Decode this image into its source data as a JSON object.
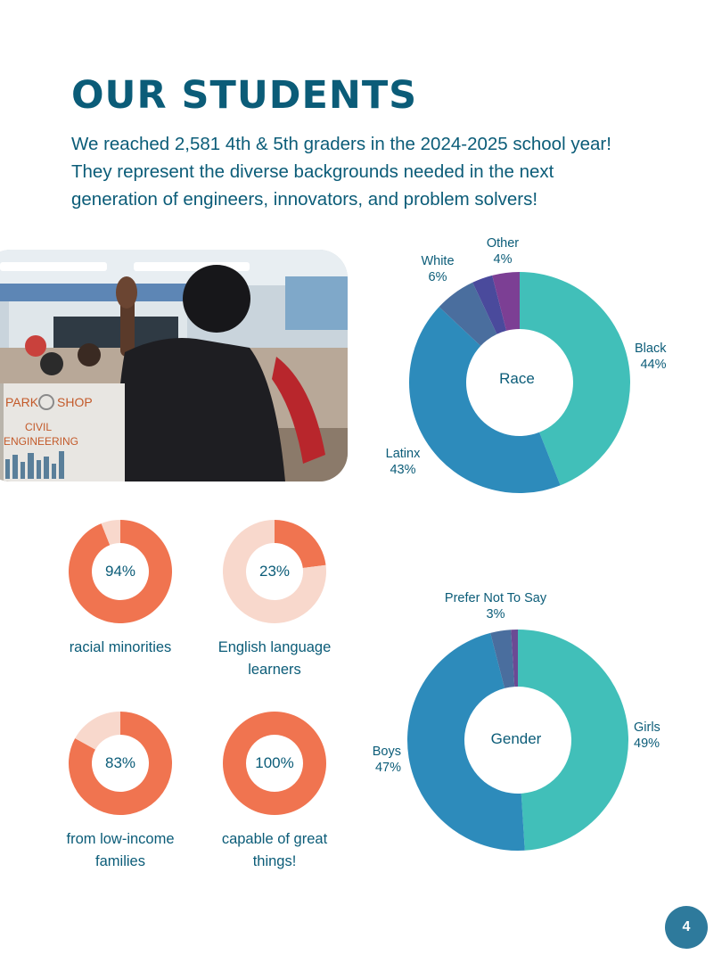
{
  "page": {
    "title": "OUR STUDENTS",
    "intro": "We reached 2,581 4th & 5th graders in the 2024-2025 school year! They represent the diverse backgrounds needed in the next generation of engineers, innovators, and problem solvers!",
    "page_number": "4"
  },
  "photo": {
    "sign_line1": "PARK",
    "sign_line2": "SHOP",
    "sign_line3": "CIVIL",
    "sign_line4": "ENGINEERING"
  },
  "chart_data": [
    {
      "type": "pie",
      "title": "Race",
      "categories": [
        "Black",
        "Latinx",
        "White",
        "Other"
      ],
      "values": [
        44,
        43,
        6,
        4
      ],
      "labels": [
        "44%",
        "43%",
        "6%",
        "4%"
      ],
      "extra_unlabeled_slice": {
        "value": 3,
        "color": "#4a4a9c"
      },
      "colors": [
        "#41bfb9",
        "#2d8bbb",
        "#4a6e9e",
        "#7c3f94"
      ]
    },
    {
      "type": "pie",
      "title": "Gender",
      "categories": [
        "Girls",
        "Boys",
        "Prefer Not To Say"
      ],
      "values": [
        49,
        47,
        3
      ],
      "labels": [
        "49%",
        "47%",
        "3%"
      ],
      "extra_unlabeled_slice": {
        "value": 1,
        "color": "#6b4a94"
      },
      "colors": [
        "#41bfb9",
        "#2d8bbb",
        "#4a6e9e"
      ]
    },
    {
      "type": "pie",
      "caption": "racial minorities",
      "value": 94,
      "label": "94%",
      "colors": [
        "#f07450",
        "#f8d8cc"
      ]
    },
    {
      "type": "pie",
      "caption": "English language learners",
      "value": 23,
      "label": "23%",
      "colors": [
        "#f07450",
        "#f8d8cc"
      ]
    },
    {
      "type": "pie",
      "caption": "from low-income families",
      "value": 83,
      "label": "83%",
      "colors": [
        "#f07450",
        "#f8d8cc"
      ]
    },
    {
      "type": "pie",
      "caption": "capable of great things!",
      "value": 100,
      "label": "100%",
      "colors": [
        "#f07450",
        "#f8d8cc"
      ]
    }
  ]
}
